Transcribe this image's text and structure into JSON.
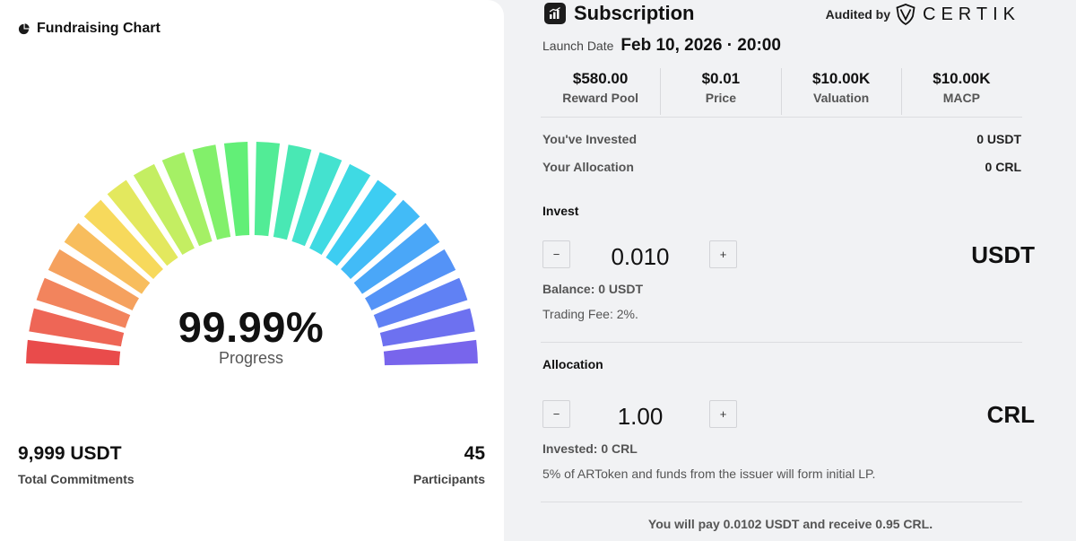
{
  "fundraising": {
    "title": "Fundraising Chart",
    "title_icon": "pie-chart-icon",
    "progress_value": "99.99%",
    "progress_label": "Progress",
    "progress_fraction": 0.9999,
    "gauge_colors": [
      "#e94b4b",
      "#ee6656",
      "#f2845d",
      "#f5a15e",
      "#f8bd5d",
      "#f7d95c",
      "#e3e85e",
      "#c4ee62",
      "#a5f065",
      "#82f06a",
      "#62ef77",
      "#52ec96",
      "#49e8b4",
      "#44e2cf",
      "#3fdae3",
      "#3dcdf2",
      "#42bbf7",
      "#4aa7f8",
      "#5493f7",
      "#6081f4",
      "#6d71f0",
      "#7865ec"
    ],
    "total_commitments_value": "9,999 USDT",
    "total_commitments_label": "Total Commitments",
    "participants_value": "45",
    "participants_label": "Participants"
  },
  "subscription": {
    "title": "Subscription",
    "icon": "bar-chart-icon",
    "audited_by": "Audited by",
    "auditor": "CERTIK",
    "auditor_icon": "certik-shield-icon",
    "launch_label": "Launch Date",
    "launch_value": "Feb 10, 2026 · 20:00",
    "stats": [
      {
        "value": "$580.00",
        "label": "Reward Pool"
      },
      {
        "value": "$0.01",
        "label": "Price"
      },
      {
        "value": "$10.00K",
        "label": "Valuation"
      },
      {
        "value": "$10.00K",
        "label": "MACP"
      }
    ],
    "invested_label": "You've Invested",
    "invested_value": "0 USDT",
    "allocation_label": "Your Allocation",
    "allocation_value": "0 CRL"
  },
  "invest": {
    "title": "Invest",
    "minus": "−",
    "plus": "+",
    "amount": "0.010",
    "currency": "USDT",
    "balance": "Balance: 0 USDT",
    "fee": "Trading Fee: 2%."
  },
  "allocation": {
    "title": "Allocation",
    "minus": "−",
    "plus": "+",
    "amount": "1.00",
    "currency": "CRL",
    "invested": "Invested: 0 CRL",
    "lp_note": "5% of ARToken and funds from the issuer will form initial LP."
  },
  "summary": "You will pay 0.0102 USDT and receive 0.95 CRL."
}
